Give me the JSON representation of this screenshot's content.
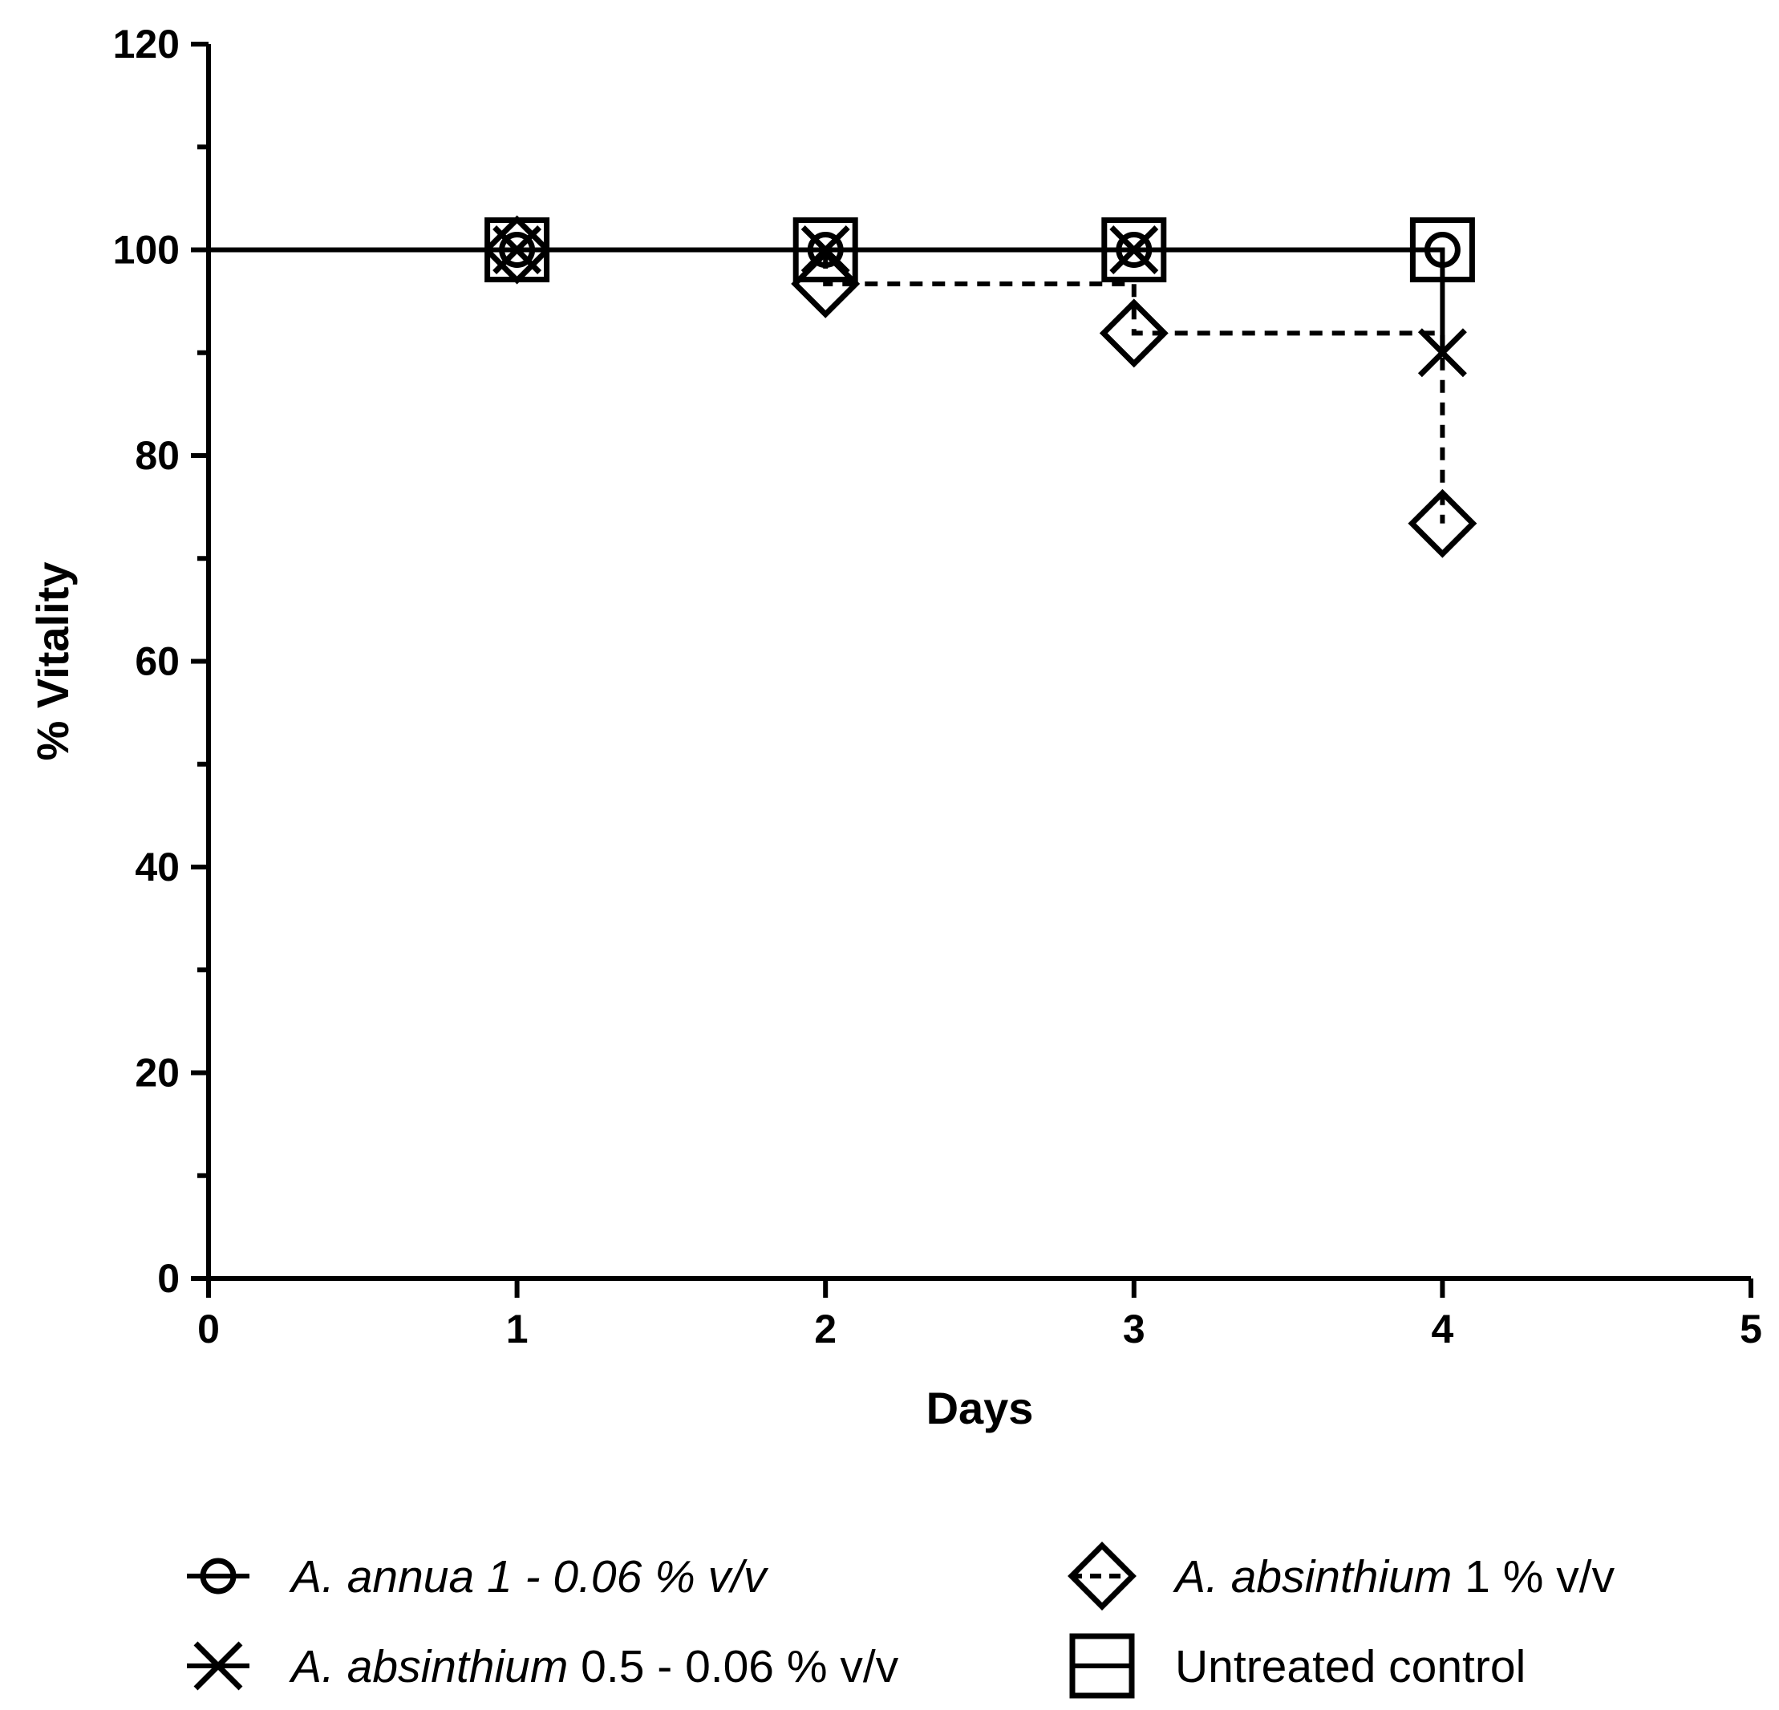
{
  "chart_data": {
    "type": "line",
    "title": "",
    "xlabel": "Days",
    "ylabel": "% Vitality",
    "xlim": [
      0,
      5
    ],
    "ylim": [
      0,
      120
    ],
    "xticks": [
      0,
      1,
      2,
      3,
      4,
      5
    ],
    "yticks": [
      0,
      20,
      40,
      60,
      80,
      100,
      120
    ],
    "grid": false,
    "line_style": "step",
    "legend_position": "bottom",
    "series": [
      {
        "name": "A. annua 1 - 0.06 % v/v",
        "name_parts": [
          {
            "text": "A. annua 1 - 0.06 % v/v",
            "italic": true
          }
        ],
        "marker": "circle",
        "dash": "solid",
        "x": [
          1,
          2,
          3,
          4
        ],
        "y": [
          100,
          100,
          100,
          100
        ]
      },
      {
        "name": "A. absinthium 0.5 - 0.06 % v/v",
        "name_parts": [
          {
            "text": "A. absinthium",
            "italic": true
          },
          {
            "text": " 0.5 - 0.06 % v/v",
            "italic": false
          }
        ],
        "marker": "x",
        "dash": "solid",
        "x": [
          1,
          2,
          3,
          4
        ],
        "y": [
          100,
          100,
          100,
          90
        ]
      },
      {
        "name": "A. absinthium 1 % v/v",
        "name_parts": [
          {
            "text": "A. absinthium",
            "italic": true
          },
          {
            "text": " 1 % v/v",
            "italic": false
          }
        ],
        "marker": "diamond",
        "dash": "dashed",
        "x": [
          1,
          2,
          3,
          4
        ],
        "y": [
          100,
          96.7,
          91.9,
          73.4
        ]
      },
      {
        "name": "Untreated control",
        "name_parts": [
          {
            "text": "Untreated control",
            "italic": false
          }
        ],
        "marker": "square",
        "dash": "solid",
        "x": [
          0,
          1,
          2,
          3,
          4
        ],
        "y": [
          100,
          100,
          100,
          100,
          100
        ]
      }
    ]
  }
}
